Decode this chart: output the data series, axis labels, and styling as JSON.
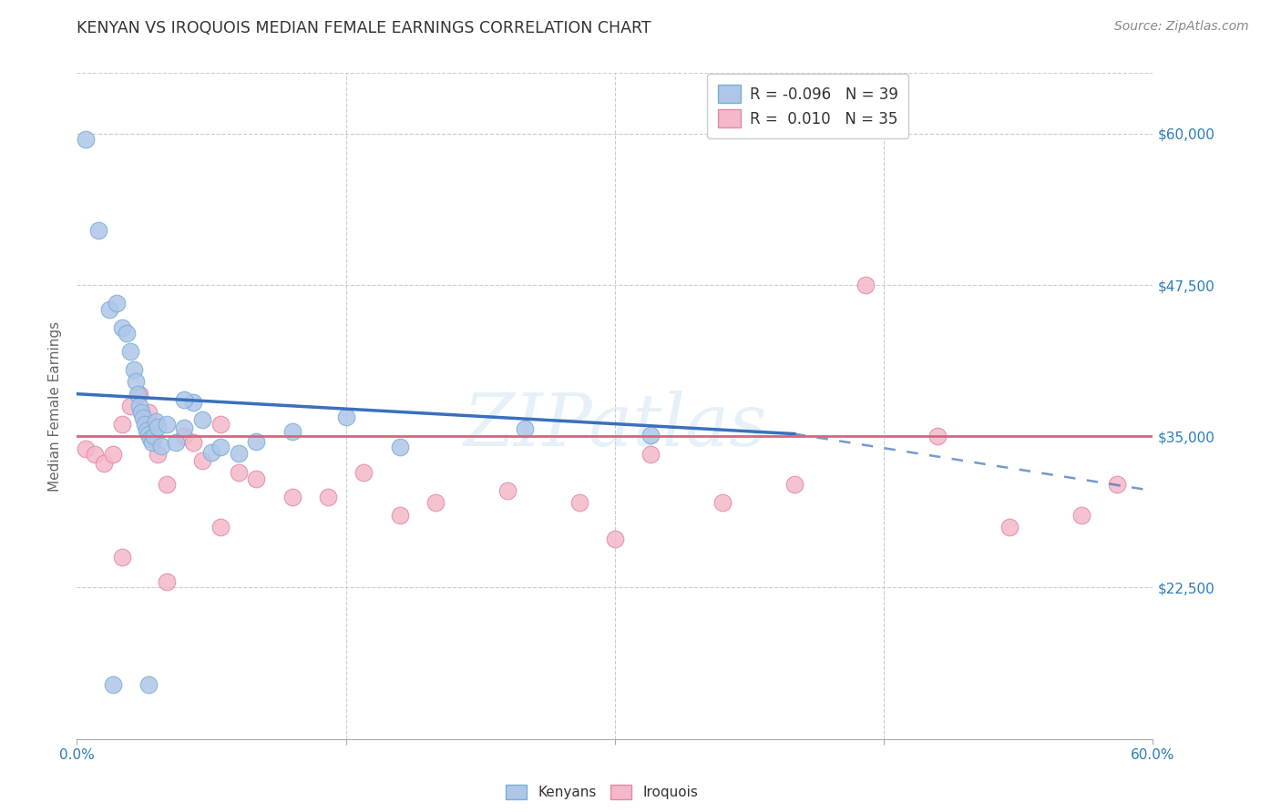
{
  "title": "KENYAN VS IROQUOIS MEDIAN FEMALE EARNINGS CORRELATION CHART",
  "source": "Source: ZipAtlas.com",
  "ylabel": "Median Female Earnings",
  "xlim": [
    0.0,
    0.6
  ],
  "ylim": [
    10000,
    65000
  ],
  "yticks": [
    22500,
    35000,
    47500,
    60000
  ],
  "ytick_labels": [
    "$22,500",
    "$35,000",
    "$47,500",
    "$60,000"
  ],
  "xticks": [
    0.0,
    0.15,
    0.3,
    0.45,
    0.6
  ],
  "xtick_labels": [
    "0.0%",
    "",
    "",
    "",
    "60.0%"
  ],
  "kenyan_R": -0.096,
  "kenyan_N": 39,
  "iroquois_R": 0.01,
  "iroquois_N": 35,
  "kenyan_color": "#aec6e8",
  "kenyan_edge_color": "#7aafd4",
  "iroquois_color": "#f4b8c8",
  "iroquois_edge_color": "#e08aaa",
  "trend_kenyan_color": "#3a6fbd",
  "trend_iroquois_color": "#e06080",
  "background_color": "#ffffff",
  "grid_color": "#cccccc",
  "watermark": "ZIPatlas",
  "kenyan_x": [
    0.005,
    0.012,
    0.018,
    0.022,
    0.025,
    0.028,
    0.03,
    0.032,
    0.033,
    0.034,
    0.035,
    0.036,
    0.037,
    0.038,
    0.039,
    0.04,
    0.041,
    0.042,
    0.043,
    0.044,
    0.045,
    0.047,
    0.05,
    0.055,
    0.06,
    0.065,
    0.07,
    0.075,
    0.08,
    0.09,
    0.1,
    0.12,
    0.15,
    0.18,
    0.25,
    0.32,
    0.02,
    0.04,
    0.06
  ],
  "kenyan_y": [
    59500,
    52000,
    45500,
    46000,
    44000,
    43500,
    42000,
    40500,
    39500,
    38500,
    37500,
    37000,
    36500,
    36000,
    35500,
    35200,
    34800,
    34500,
    35000,
    36200,
    35800,
    34200,
    36000,
    34500,
    35700,
    37800,
    36400,
    33700,
    34100,
    33600,
    34600,
    35400,
    36600,
    34100,
    35600,
    35100,
    14500,
    14500,
    38000
  ],
  "iroquois_x": [
    0.005,
    0.01,
    0.015,
    0.02,
    0.025,
    0.03,
    0.035,
    0.04,
    0.045,
    0.05,
    0.06,
    0.065,
    0.07,
    0.08,
    0.09,
    0.1,
    0.12,
    0.14,
    0.16,
    0.2,
    0.24,
    0.28,
    0.32,
    0.36,
    0.4,
    0.44,
    0.48,
    0.52,
    0.56,
    0.58,
    0.025,
    0.05,
    0.08,
    0.18,
    0.3
  ],
  "iroquois_y": [
    34000,
    33500,
    32800,
    33500,
    36000,
    37500,
    38500,
    37000,
    33500,
    31000,
    35000,
    34500,
    33000,
    36000,
    32000,
    31500,
    30000,
    30000,
    32000,
    29500,
    30500,
    29500,
    33500,
    29500,
    31000,
    47500,
    35000,
    27500,
    28500,
    31000,
    25000,
    23000,
    27500,
    28500,
    26500
  ],
  "trend_blue_x0": 0.0,
  "trend_blue_y0": 38500,
  "trend_blue_x1": 0.4,
  "trend_blue_y1": 35200,
  "trend_blue_dash_x0": 0.4,
  "trend_blue_dash_y0": 35200,
  "trend_blue_dash_x1": 0.6,
  "trend_blue_dash_y1": 30500,
  "trend_pink_y": 35000
}
